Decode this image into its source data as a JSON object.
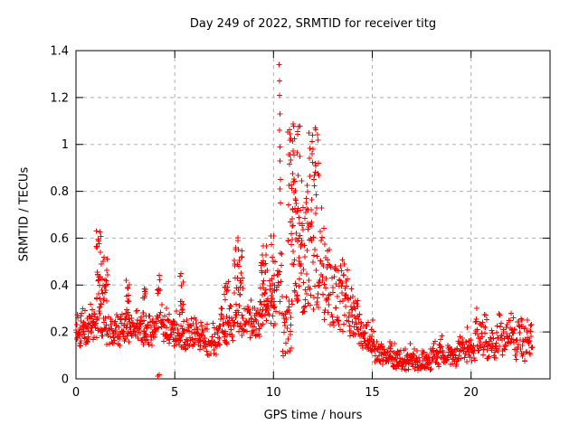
{
  "chart_data": {
    "type": "scatter",
    "title": "Day 249 of 2022, SRMTID for receiver titg",
    "xlabel": "GPS time / hours",
    "ylabel": "SRMTID / TECUs",
    "xlim": [
      0,
      24
    ],
    "ylim": [
      0,
      1.4
    ],
    "xticks": [
      0,
      5,
      10,
      15,
      20
    ],
    "xtick_labels": [
      "0",
      "5",
      "10",
      "15",
      "20"
    ],
    "yticks": [
      0,
      0.2,
      0.4,
      0.6,
      0.8,
      1,
      1.2,
      1.4
    ],
    "ytick_labels": [
      "0",
      "0.2",
      "0.4",
      "0.6",
      "0.8",
      "1",
      "1.2",
      "1.4"
    ],
    "grid": true,
    "legend": "none",
    "marker": "plus",
    "colors": {
      "points": "#ff0000",
      "grid": "#b0b0b0",
      "axes": "#000000",
      "background": "#ffffff"
    },
    "x_data_range": [
      0,
      23.1
    ],
    "y_max_point": [
      10.3,
      1.34
    ],
    "seed": 1337,
    "segments_format": "[t_start_hr, t_end_hr, n_points, y_min_TECU, y_max_TECU, mode] mode b=background band (skewed low), u=uniform vertical spread (TID activity column)",
    "segments": [
      [
        0.0,
        0.55,
        40,
        0.13,
        0.33,
        "b"
      ],
      [
        0.55,
        1.0,
        32,
        0.14,
        0.35,
        "b"
      ],
      [
        1.02,
        1.28,
        26,
        0.3,
        0.63,
        "u"
      ],
      [
        1.28,
        1.62,
        22,
        0.33,
        0.53,
        "u"
      ],
      [
        1.0,
        1.7,
        30,
        0.14,
        0.3,
        "b"
      ],
      [
        1.7,
        2.5,
        48,
        0.14,
        0.3,
        "b"
      ],
      [
        2.52,
        2.72,
        12,
        0.24,
        0.43,
        "u"
      ],
      [
        2.5,
        3.3,
        48,
        0.15,
        0.31,
        "b"
      ],
      [
        3.38,
        3.56,
        10,
        0.24,
        0.39,
        "u"
      ],
      [
        3.3,
        4.1,
        48,
        0.14,
        0.3,
        "b"
      ],
      [
        4.1,
        4.35,
        16,
        0.2,
        0.46,
        "u"
      ],
      [
        4.35,
        5.2,
        52,
        0.14,
        0.3,
        "b"
      ],
      [
        5.24,
        5.44,
        12,
        0.26,
        0.48,
        "u"
      ],
      [
        5.2,
        6.2,
        58,
        0.12,
        0.28,
        "b"
      ],
      [
        6.2,
        7.3,
        62,
        0.1,
        0.27,
        "b"
      ],
      [
        7.3,
        8.0,
        42,
        0.14,
        0.36,
        "b"
      ],
      [
        7.5,
        7.72,
        10,
        0.25,
        0.43,
        "u"
      ],
      [
        8.0,
        8.45,
        34,
        0.24,
        0.63,
        "u"
      ],
      [
        8.0,
        8.45,
        12,
        0.18,
        0.3,
        "b"
      ],
      [
        8.45,
        9.3,
        52,
        0.17,
        0.35,
        "b"
      ],
      [
        9.32,
        9.72,
        28,
        0.3,
        0.63,
        "u"
      ],
      [
        9.3,
        10.1,
        40,
        0.22,
        0.45,
        "b"
      ],
      [
        9.85,
        10.08,
        14,
        0.3,
        0.62,
        "u"
      ],
      [
        10.12,
        10.45,
        16,
        0.28,
        0.6,
        "u"
      ],
      [
        10.45,
        10.95,
        30,
        0.09,
        0.35,
        "u"
      ],
      [
        10.72,
        11.0,
        24,
        0.55,
        1.08,
        "u"
      ],
      [
        10.95,
        11.35,
        52,
        0.3,
        1.1,
        "u"
      ],
      [
        11.35,
        11.8,
        42,
        0.28,
        0.85,
        "u"
      ],
      [
        11.8,
        12.3,
        52,
        0.28,
        1.08,
        "u"
      ],
      [
        12.3,
        12.55,
        18,
        0.35,
        0.73,
        "u"
      ],
      [
        12.55,
        12.85,
        20,
        0.25,
        0.58,
        "u"
      ],
      [
        12.85,
        13.35,
        30,
        0.22,
        0.48,
        "u"
      ],
      [
        13.35,
        13.8,
        30,
        0.2,
        0.55,
        "u"
      ],
      [
        13.8,
        14.3,
        34,
        0.17,
        0.42,
        "b"
      ],
      [
        14.3,
        14.7,
        26,
        0.13,
        0.3,
        "b"
      ],
      [
        14.7,
        15.1,
        26,
        0.1,
        0.25,
        "b"
      ],
      [
        15.1,
        16.0,
        55,
        0.05,
        0.18,
        "b"
      ],
      [
        16.0,
        17.0,
        60,
        0.035,
        0.15,
        "b"
      ],
      [
        17.0,
        18.0,
        60,
        0.035,
        0.14,
        "b"
      ],
      [
        18.0,
        18.6,
        36,
        0.05,
        0.2,
        "b"
      ],
      [
        18.6,
        19.3,
        40,
        0.05,
        0.16,
        "b"
      ],
      [
        19.3,
        20.2,
        50,
        0.07,
        0.22,
        "b"
      ],
      [
        20.2,
        20.8,
        36,
        0.1,
        0.3,
        "b"
      ],
      [
        20.8,
        21.4,
        34,
        0.08,
        0.24,
        "b"
      ],
      [
        21.4,
        22.2,
        44,
        0.1,
        0.32,
        "b"
      ],
      [
        22.2,
        22.7,
        30,
        0.08,
        0.28,
        "b"
      ],
      [
        22.7,
        23.1,
        24,
        0.06,
        0.25,
        "b"
      ]
    ],
    "outlier_points": [
      [
        4.15,
        0.012
      ],
      [
        4.21,
        0.018
      ],
      [
        10.29,
        1.34
      ],
      [
        10.31,
        1.27
      ],
      [
        10.3,
        1.21
      ],
      [
        10.32,
        1.13
      ],
      [
        10.31,
        1.06
      ],
      [
        10.33,
        0.99
      ],
      [
        10.32,
        0.93
      ],
      [
        10.34,
        0.85
      ],
      [
        10.33,
        0.81
      ],
      [
        10.35,
        0.75
      ]
    ]
  }
}
